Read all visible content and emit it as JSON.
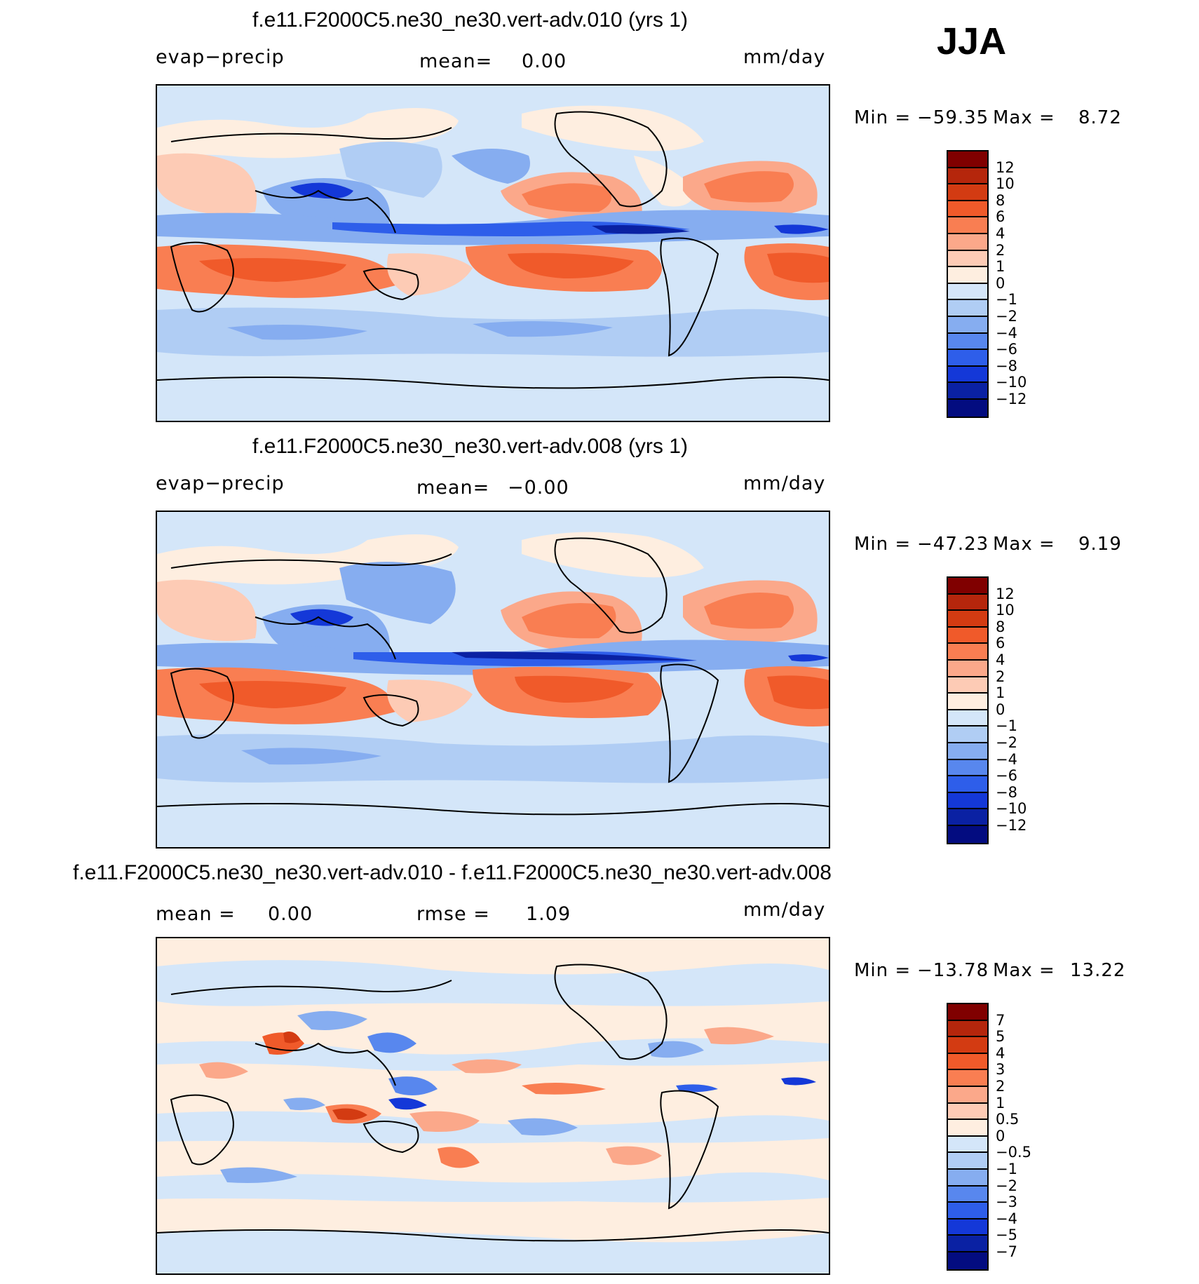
{
  "season": "JJA",
  "panels": [
    {
      "title": "f.e11.F2000C5.ne30_ne30.vert-adv.010 (yrs 1)",
      "left_label": "evap−precip",
      "mean_label": "mean=",
      "mean_value": "0.00",
      "units": "mm/day",
      "stats": {
        "min_label": "Min =",
        "min_value": "−59.35",
        "max_label": "Max =",
        "max_value": "8.72"
      },
      "colorbar": {
        "levels": [
          "12",
          "10",
          "8",
          "6",
          "4",
          "2",
          "1",
          "0",
          "−1",
          "−2",
          "−4",
          "−6",
          "−8",
          "−10",
          "−12"
        ],
        "colors": [
          "#800000",
          "#b5260c",
          "#d33b12",
          "#f05a2a",
          "#f97e52",
          "#fba88a",
          "#fdcbb5",
          "#feeee0",
          "#d4e6f9",
          "#b0cdf4",
          "#86adf0",
          "#5887ee",
          "#2e5eea",
          "#1438d8",
          "#0a21a3",
          "#030c80"
        ]
      }
    },
    {
      "title": "f.e11.F2000C5.ne30_ne30.vert-adv.008 (yrs 1)",
      "left_label": "evap−precip",
      "mean_label": "mean=",
      "mean_value": "−0.00",
      "units": "mm/day",
      "stats": {
        "min_label": "Min =",
        "min_value": "−47.23",
        "max_label": "Max =",
        "max_value": "9.19"
      },
      "colorbar": {
        "levels": [
          "12",
          "10",
          "8",
          "6",
          "4",
          "2",
          "1",
          "0",
          "−1",
          "−2",
          "−4",
          "−6",
          "−8",
          "−10",
          "−12"
        ],
        "colors": [
          "#800000",
          "#b5260c",
          "#d33b12",
          "#f05a2a",
          "#f97e52",
          "#fba88a",
          "#fdcbb5",
          "#feeee0",
          "#d4e6f9",
          "#b0cdf4",
          "#86adf0",
          "#5887ee",
          "#2e5eea",
          "#1438d8",
          "#0a21a3",
          "#030c80"
        ]
      }
    },
    {
      "title": "f.e11.F2000C5.ne30_ne30.vert-adv.010 - f.e11.F2000C5.ne30_ne30.vert-adv.008",
      "mean_label": "mean =",
      "mean_value": "0.00",
      "rmse_label": "rmse =",
      "rmse_value": "1.09",
      "units": "mm/day",
      "stats": {
        "min_label": "Min =",
        "min_value": "−13.78",
        "max_label": "Max =",
        "max_value": "13.22"
      },
      "colorbar": {
        "levels": [
          "7",
          "5",
          "4",
          "3",
          "2",
          "1",
          "0.5",
          "0",
          "−0.5",
          "−1",
          "−2",
          "−3",
          "−4",
          "−5",
          "−7"
        ],
        "colors": [
          "#800000",
          "#b5260c",
          "#d33b12",
          "#f05a2a",
          "#f97e52",
          "#fba88a",
          "#fdcbb5",
          "#feeee0",
          "#d4e6f9",
          "#b0cdf4",
          "#86adf0",
          "#5887ee",
          "#2e5eea",
          "#1438d8",
          "#0a21a3",
          "#030c80"
        ]
      }
    }
  ],
  "chart_data": [
    {
      "type": "heatmap",
      "title": "f.e11.F2000C5.ne30_ne30.vert-adv.010 (yrs 1)",
      "variable": "evap−precip",
      "units": "mm/day",
      "mean": 0.0,
      "min": -59.35,
      "max": 8.72,
      "projection": "cylindrical-equidistant",
      "lon_range": [
        0,
        360
      ],
      "lat_range": [
        -90,
        90
      ]
    },
    {
      "type": "heatmap",
      "title": "f.e11.F2000C5.ne30_ne30.vert-adv.008 (yrs 1)",
      "variable": "evap−precip",
      "units": "mm/day",
      "mean": -0.0,
      "min": -47.23,
      "max": 9.19,
      "projection": "cylindrical-equidistant",
      "lon_range": [
        0,
        360
      ],
      "lat_range": [
        -90,
        90
      ]
    },
    {
      "type": "heatmap",
      "title": "f.e11.F2000C5.ne30_ne30.vert-adv.010 - f.e11.F2000C5.ne30_ne30.vert-adv.008",
      "units": "mm/day",
      "mean": 0.0,
      "rmse": 1.09,
      "min": -13.78,
      "max": 13.22,
      "projection": "cylindrical-equidistant",
      "lon_range": [
        0,
        360
      ],
      "lat_range": [
        -90,
        90
      ]
    }
  ]
}
